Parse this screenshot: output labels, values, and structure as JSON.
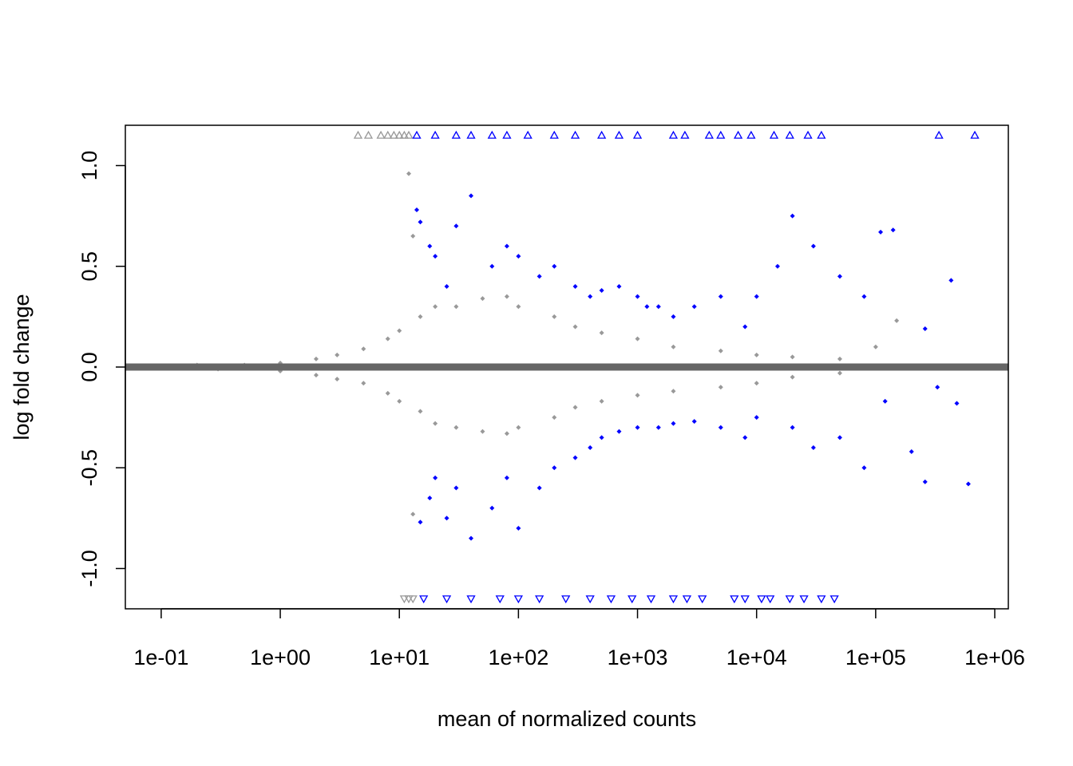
{
  "chart_data": {
    "type": "scatter",
    "title": "",
    "xlabel": "mean of normalized counts",
    "ylabel": "log fold change",
    "xscale": "log10",
    "xlim": [
      0.05,
      1300000
    ],
    "ylim": [
      -1.2,
      1.2
    ],
    "x_ticks": [
      {
        "value": 0.1,
        "label": "1e-01"
      },
      {
        "value": 1,
        "label": "1e+00"
      },
      {
        "value": 10,
        "label": "1e+01"
      },
      {
        "value": 100,
        "label": "1e+02"
      },
      {
        "value": 1000,
        "label": "1e+03"
      },
      {
        "value": 10000,
        "label": "1e+04"
      },
      {
        "value": 100000,
        "label": "1e+05"
      },
      {
        "value": 1000000,
        "label": "1e+06"
      }
    ],
    "y_ticks": [
      {
        "value": -1.0,
        "label": "-1.0"
      },
      {
        "value": -0.5,
        "label": "-0.5"
      },
      {
        "value": 0.0,
        "label": "0.0"
      },
      {
        "value": 0.5,
        "label": "0.5"
      },
      {
        "value": 1.0,
        "label": "1.0"
      }
    ],
    "grid": false,
    "hline": {
      "y": 0,
      "color": "#666666"
    },
    "series": [
      {
        "color": "#999999",
        "marker": "filled-diamond",
        "points": [
          [
            0.1,
            0.0
          ],
          [
            0.2,
            0.01
          ],
          [
            0.3,
            -0.01
          ],
          [
            0.5,
            0.01
          ],
          [
            1,
            0.02
          ],
          [
            1,
            -0.02
          ],
          [
            2,
            0.04
          ],
          [
            2,
            -0.04
          ],
          [
            3,
            0.06
          ],
          [
            3,
            -0.06
          ],
          [
            5,
            0.09
          ],
          [
            5,
            -0.08
          ],
          [
            8,
            0.14
          ],
          [
            8,
            -0.13
          ],
          [
            10,
            0.18
          ],
          [
            10,
            -0.17
          ],
          [
            12,
            0.96
          ],
          [
            13,
            0.65
          ],
          [
            13,
            -0.73
          ],
          [
            15,
            0.25
          ],
          [
            15,
            -0.22
          ],
          [
            20,
            0.3
          ],
          [
            20,
            -0.28
          ],
          [
            30,
            0.3
          ],
          [
            30,
            -0.3
          ],
          [
            50,
            0.34
          ],
          [
            50,
            -0.32
          ],
          [
            80,
            0.35
          ],
          [
            80,
            -0.33
          ],
          [
            100,
            0.3
          ],
          [
            100,
            -0.3
          ],
          [
            200,
            0.25
          ],
          [
            200,
            -0.25
          ],
          [
            300,
            0.2
          ],
          [
            300,
            -0.2
          ],
          [
            500,
            0.17
          ],
          [
            500,
            -0.17
          ],
          [
            1000,
            0.14
          ],
          [
            1000,
            -0.14
          ],
          [
            2000,
            0.1
          ],
          [
            2000,
            -0.12
          ],
          [
            5000,
            0.08
          ],
          [
            5000,
            -0.1
          ],
          [
            10000,
            0.06
          ],
          [
            10000,
            -0.08
          ],
          [
            20000,
            0.05
          ],
          [
            20000,
            -0.05
          ],
          [
            50000,
            0.04
          ],
          [
            50000,
            -0.03
          ],
          [
            100000,
            0.1
          ],
          [
            150000,
            0.23
          ]
        ]
      },
      {
        "color": "#0000ff",
        "marker": "filled-diamond",
        "points": [
          [
            14,
            0.78
          ],
          [
            15,
            0.72
          ],
          [
            18,
            0.6
          ],
          [
            20,
            0.55
          ],
          [
            25,
            0.4
          ],
          [
            30,
            0.7
          ],
          [
            40,
            0.85
          ],
          [
            60,
            0.5
          ],
          [
            80,
            0.6
          ],
          [
            100,
            0.55
          ],
          [
            150,
            0.45
          ],
          [
            200,
            0.5
          ],
          [
            300,
            0.4
          ],
          [
            400,
            0.35
          ],
          [
            500,
            0.38
          ],
          [
            700,
            0.4
          ],
          [
            1000,
            0.35
          ],
          [
            1200,
            0.3
          ],
          [
            1500,
            0.3
          ],
          [
            2000,
            0.25
          ],
          [
            3000,
            0.3
          ],
          [
            5000,
            0.35
          ],
          [
            8000,
            0.2
          ],
          [
            10000,
            0.35
          ],
          [
            15000,
            0.5
          ],
          [
            20000,
            0.75
          ],
          [
            30000,
            0.6
          ],
          [
            50000,
            0.45
          ],
          [
            80000,
            0.35
          ],
          [
            110000,
            0.67
          ],
          [
            140000,
            0.68
          ],
          [
            260000,
            0.19
          ],
          [
            430000,
            0.43
          ],
          [
            15,
            -0.77
          ],
          [
            18,
            -0.65
          ],
          [
            20,
            -0.55
          ],
          [
            25,
            -0.75
          ],
          [
            30,
            -0.6
          ],
          [
            40,
            -0.85
          ],
          [
            60,
            -0.7
          ],
          [
            80,
            -0.55
          ],
          [
            100,
            -0.8
          ],
          [
            150,
            -0.6
          ],
          [
            200,
            -0.5
          ],
          [
            300,
            -0.45
          ],
          [
            400,
            -0.4
          ],
          [
            500,
            -0.35
          ],
          [
            700,
            -0.32
          ],
          [
            1000,
            -0.3
          ],
          [
            1500,
            -0.3
          ],
          [
            2000,
            -0.28
          ],
          [
            3000,
            -0.27
          ],
          [
            5000,
            -0.3
          ],
          [
            8000,
            -0.35
          ],
          [
            10000,
            -0.25
          ],
          [
            20000,
            -0.3
          ],
          [
            30000,
            -0.4
          ],
          [
            50000,
            -0.35
          ],
          [
            80000,
            -0.5
          ],
          [
            120000,
            -0.17
          ],
          [
            200000,
            -0.42
          ],
          [
            330000,
            -0.1
          ],
          [
            480000,
            -0.18
          ],
          [
            260000,
            -0.57
          ],
          [
            600000,
            -0.58
          ]
        ]
      },
      {
        "color": "#999999",
        "marker": "open-triangle-up",
        "note_values": "out-of-range high",
        "points": [
          [
            4.5,
            1.15
          ],
          [
            5.5,
            1.15
          ],
          [
            7,
            1.15
          ],
          [
            8,
            1.15
          ],
          [
            9,
            1.15
          ],
          [
            10,
            1.15
          ],
          [
            11,
            1.15
          ],
          [
            12,
            1.15
          ]
        ]
      },
      {
        "color": "#0000ff",
        "marker": "open-triangle-up",
        "points": [
          [
            14,
            1.15
          ],
          [
            20,
            1.15
          ],
          [
            30,
            1.15
          ],
          [
            40,
            1.15
          ],
          [
            60,
            1.15
          ],
          [
            80,
            1.15
          ],
          [
            120,
            1.15
          ],
          [
            200,
            1.15
          ],
          [
            300,
            1.15
          ],
          [
            500,
            1.15
          ],
          [
            700,
            1.15
          ],
          [
            1000,
            1.15
          ],
          [
            2000,
            1.15
          ],
          [
            2500,
            1.15
          ],
          [
            4000,
            1.15
          ],
          [
            5000,
            1.15
          ],
          [
            7000,
            1.15
          ],
          [
            9000,
            1.15
          ],
          [
            14000,
            1.15
          ],
          [
            19000,
            1.15
          ],
          [
            27000,
            1.15
          ],
          [
            35000,
            1.15
          ],
          [
            340000,
            1.15
          ],
          [
            680000,
            1.15
          ]
        ]
      },
      {
        "color": "#999999",
        "marker": "open-triangle-down",
        "points": [
          [
            11,
            -1.15
          ],
          [
            12,
            -1.15
          ],
          [
            13,
            -1.15
          ]
        ]
      },
      {
        "color": "#0000ff",
        "marker": "open-triangle-down",
        "points": [
          [
            16,
            -1.15
          ],
          [
            25,
            -1.15
          ],
          [
            40,
            -1.15
          ],
          [
            70,
            -1.15
          ],
          [
            100,
            -1.15
          ],
          [
            150,
            -1.15
          ],
          [
            250,
            -1.15
          ],
          [
            400,
            -1.15
          ],
          [
            600,
            -1.15
          ],
          [
            900,
            -1.15
          ],
          [
            1300,
            -1.15
          ],
          [
            2000,
            -1.15
          ],
          [
            2600,
            -1.15
          ],
          [
            3500,
            -1.15
          ],
          [
            6500,
            -1.15
          ],
          [
            8000,
            -1.15
          ],
          [
            11000,
            -1.15
          ],
          [
            13000,
            -1.15
          ],
          [
            19000,
            -1.15
          ],
          [
            25000,
            -1.15
          ],
          [
            35000,
            -1.15
          ],
          [
            45000,
            -1.15
          ]
        ]
      }
    ]
  }
}
